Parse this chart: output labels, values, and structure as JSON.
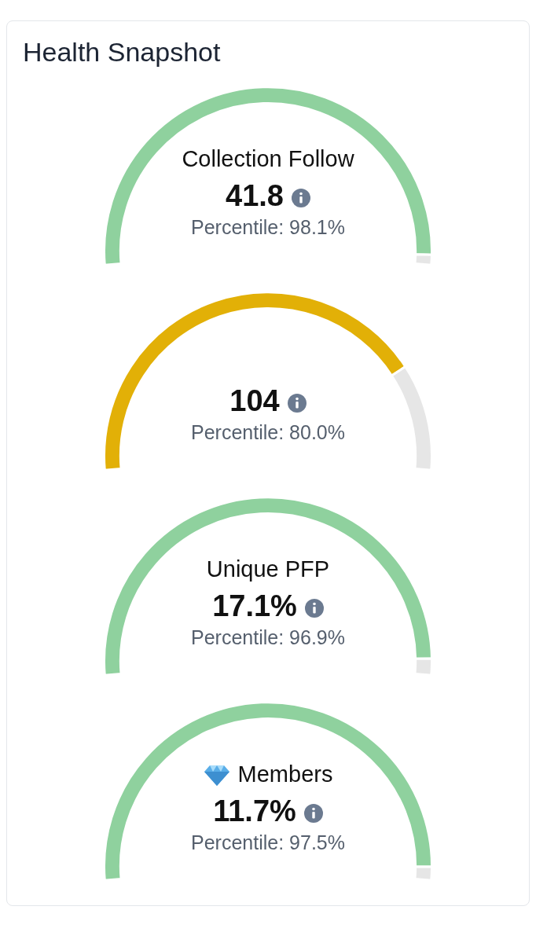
{
  "chart_data": [
    {
      "type": "other",
      "title": "Health Snapshot"
    },
    {
      "type": "donut",
      "title": "Collection Follow",
      "categories": [
        null,
        null
      ],
      "values": [
        98.1,
        1.9
      ],
      "colors": [
        "#8fd19e",
        "#e6e6e6"
      ],
      "annotations": [
        "41.8",
        "Percentile: 98.1%"
      ],
      "legend": false
    },
    {
      "type": "donut",
      "categories": [
        null,
        null
      ],
      "values": [
        80.0,
        20.0
      ],
      "colors": [
        "#e2b007",
        "#e6e6e6"
      ],
      "annotations": [
        "104",
        "Percentile: 80.0%"
      ],
      "legend": false
    },
    {
      "type": "donut",
      "title": "Unique PFP",
      "categories": [
        null,
        null
      ],
      "values": [
        96.9,
        3.1
      ],
      "colors": [
        "#8fd19e",
        "#e6e6e6"
      ],
      "annotations": [
        "17.1%",
        "Percentile: 96.9%"
      ],
      "legend": false
    },
    {
      "type": "donut",
      "title": "Members",
      "categories": [
        null,
        null
      ],
      "values": [
        97.5,
        2.5
      ],
      "colors": [
        "#8fd19e",
        "#e6e6e6"
      ],
      "annotations": [
        "11.7%",
        "Percentile: 97.5%"
      ],
      "legend": false
    }
  ]
}
